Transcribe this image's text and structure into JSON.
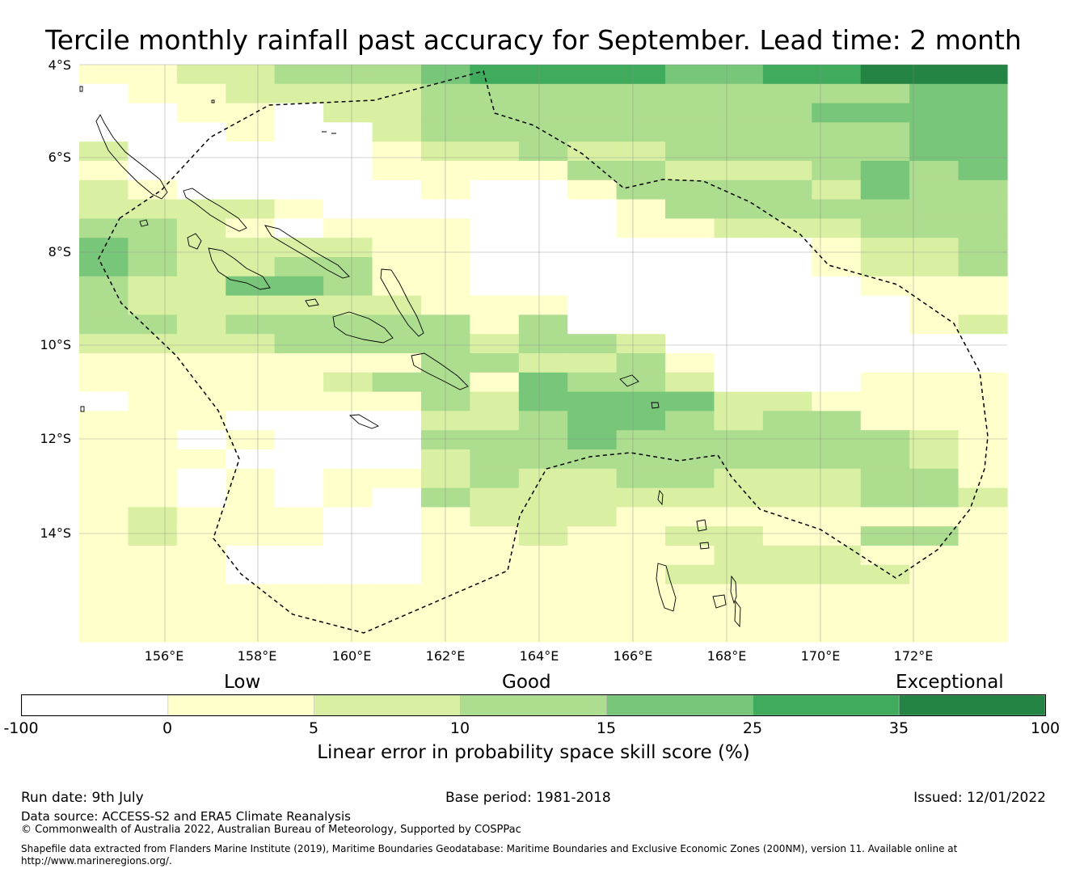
{
  "title": "Tercile monthly rainfall past accuracy for September. Lead time: 2 month",
  "map": {
    "lat_labels": [
      "4°S",
      "6°S",
      "8°S",
      "10°S",
      "12°S",
      "14°S"
    ],
    "lon_labels": [
      "156°E",
      "158°E",
      "160°E",
      "162°E",
      "164°E",
      "166°E",
      "168°E",
      "170°E",
      "172°E"
    ],
    "colors": [
      "#ffffff",
      "#ffffcc",
      "#d9f0a3",
      "#addd8e",
      "#78c679",
      "#41ab5d",
      "#238443"
    ],
    "grid_rows": [
      "1122333455554455666",
      "0112222333333333344",
      "0011022333333334444",
      "0001002333333333344",
      "2000001223223333344",
      "1000001111332223434",
      "2100000100133332433",
      "2222100000013333333",
      "3321011100011222333",
      "4322221100000001223",
      "4322331100000001223",
      "3224431100000000111",
      "3222222111000000011",
      "3323333313000000012",
      "2222333323320000000",
      "1111111332231000000",
      "1111123314332000111",
      "0111111324444221111",
      "1110000223443233111",
      "1101000333433333321",
      "1110000233333333321",
      "1101011232233222331",
      "1101010322222222332",
      "1211100122211111111",
      "1211100112112211331",
      "1110000111111222111",
      "1110000111112222211",
      "1111111111111111111",
      "1111111111111111111",
      "1111111111111111111"
    ],
    "colorbar_words": [
      "Low",
      "Good",
      "Exceptional"
    ],
    "colorbar_ticks": [
      "-100",
      "0",
      "5",
      "10",
      "15",
      "25",
      "35",
      "100"
    ],
    "colorbar_label": "Linear error in probability space skill score (%)"
  },
  "footer": {
    "run_date": "Run date: 9th July",
    "base_period": "Base period: 1981-2018",
    "issued": "Issued: 12/01/2022",
    "data_source": "Data source: ACCESS-S2 and ERA5 Climate Reanalysis",
    "copyright": "© Commonwealth of Australia 2022, Australian Bureau of Meteorology, Supported by COSPPac",
    "shapefile_line1": "Shapefile data extracted from Flanders Marine Institute (2019), Maritime Boundaries Geodatabase: Maritime Boundaries and Exclusive Economic Zones (200NM), version 11. Available online at",
    "shapefile_line2": "http://www.marineregions.org/."
  }
}
